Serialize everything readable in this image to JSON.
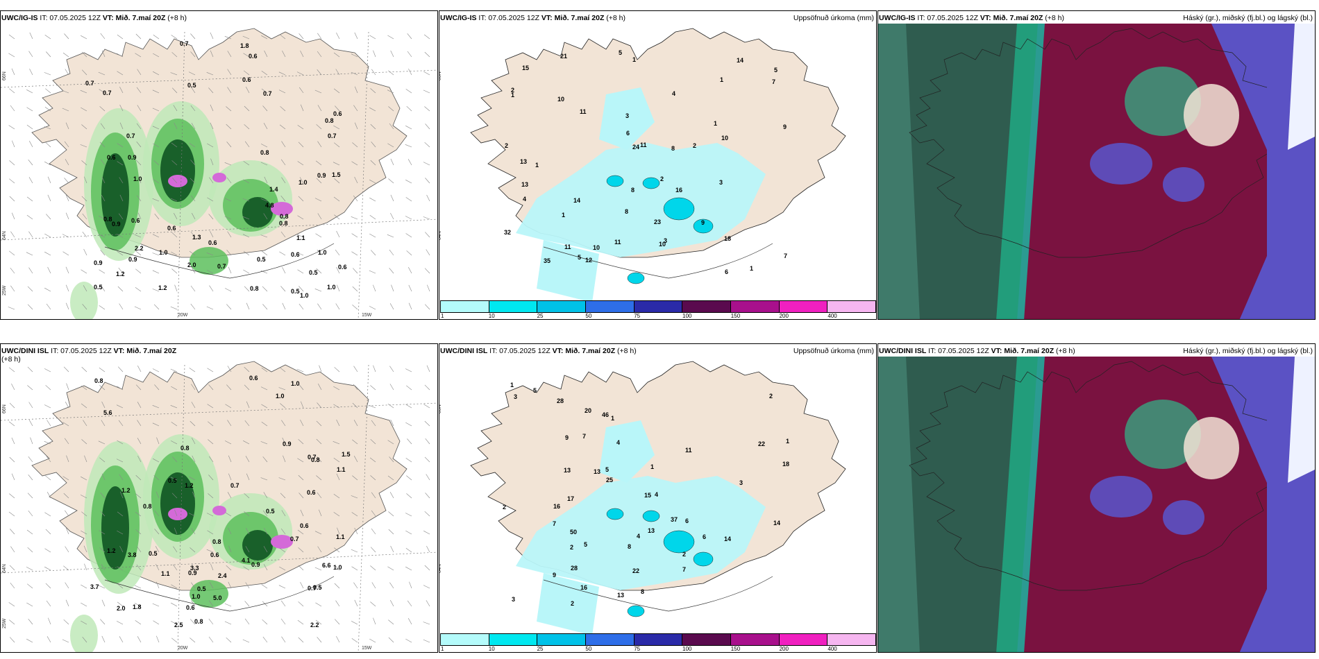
{
  "panels": [
    {
      "model": "UWC/IG-IS",
      "it_label": "IT: 07.05.2025 12Z",
      "vt_label": "VT: Mið. 7.maí 20Z",
      "lead": "(+8 h)",
      "right_title": "",
      "kind": "wind",
      "lat_labels": [
        "66N",
        "64N",
        "25W"
      ],
      "lon_labels": [
        "20W",
        "15W"
      ],
      "values": [
        "0.7",
        "0.6",
        "0.8",
        "1.0",
        "0.7",
        "0.9",
        "1.1",
        "0.6",
        "0.5",
        "0.7",
        "1.0",
        "0.8",
        "1.2",
        "2.2",
        "1.3",
        "0.7",
        "0.6",
        "0.8",
        "0.9",
        "1.0",
        "2.0",
        "1.8",
        "1.5",
        "1.4",
        "1.2",
        "0.9",
        "0.7",
        "0.6",
        "0.6",
        "0.8",
        "1.0",
        "0.6",
        "0.8",
        "0.5",
        "0.6",
        "1.0",
        "0.7",
        "0.9",
        "0.5",
        "0.6",
        "0.6",
        "0.5",
        "0.9",
        "4.8",
        "1.0",
        "0.7",
        "0.8",
        "0.5"
      ]
    },
    {
      "model": "UWC/IG-IS",
      "it_label": "IT: 07.05.2025 12Z",
      "vt_label": "VT: Mið. 7.maí 20Z",
      "lead": "(+8 h)",
      "right_title": "Uppsöfnuð úrkoma (mm)",
      "kind": "precip",
      "lat_labels": [
        "65N",
        "64N"
      ],
      "lon_labels": [],
      "values": [
        "2",
        "1",
        "1",
        "5",
        "2",
        "1",
        "1",
        "4",
        "3",
        "14",
        "11",
        "3",
        "5",
        "1",
        "10",
        "1",
        "3",
        "13",
        "2",
        "8",
        "9",
        "18",
        "7",
        "6",
        "11",
        "24",
        "16",
        "21",
        "12",
        "10",
        "13",
        "6",
        "8",
        "35",
        "5",
        "4",
        "10",
        "15",
        "10",
        "11",
        "23",
        "2",
        "7",
        "9",
        "8",
        "14",
        "1",
        "32",
        "11"
      ]
    },
    {
      "model": "UWC/IG-IS",
      "it_label": "IT: 07.05.2025 12Z",
      "vt_label": "VT: Mið. 7.maí 20Z",
      "lead": "(+8 h)",
      "right_title": "Háský (gr.), miðský (fj.bl.) og lágský (bl.)",
      "kind": "cloud"
    },
    {
      "model": "UWC/DINI ISL",
      "it_label": "IT: 07.05.2025 12Z",
      "vt_label": "VT: Mið. 7.maí 20Z",
      "lead": "(+8 h)",
      "right_title": "",
      "kind": "wind",
      "lat_labels": [
        "66N",
        "64N",
        "25W"
      ],
      "lon_labels": [
        "20W",
        "15W"
      ],
      "values": [
        "0.6",
        "1.2",
        "0.8",
        "1.0",
        "0.7",
        "0.5",
        "0.6",
        "0.8",
        "1.1",
        "0.7",
        "0.9",
        "1.2",
        "1.8",
        "2.2",
        "0.5",
        "3.7",
        "2.4",
        "0.6",
        "0.9",
        "0.8",
        "1.5",
        "2.5",
        "1.0",
        "2.0",
        "5.0",
        "5.6",
        "4.1",
        "3.3",
        "0.5",
        "1.0",
        "0.8",
        "0.6",
        "0.7",
        "0.5",
        "0.7",
        "1.1",
        "1.2",
        "0.8",
        "0.9",
        "1.0",
        "0.6",
        "0.8",
        "3.8",
        "1.1",
        "6.6",
        "0.5"
      ]
    },
    {
      "model": "UWC/DINI ISL",
      "it_label": "IT: 07.05.2025 12Z",
      "vt_label": "VT: Mið. 7.maí 20Z",
      "lead": "(+8 h)",
      "right_title": "Uppsöfnuð úrkoma (mm)",
      "kind": "precip",
      "lat_labels": [
        "65N",
        "64N"
      ],
      "lon_labels": [],
      "values": [
        "3",
        "1",
        "2",
        "2",
        "1",
        "2",
        "1",
        "5",
        "3",
        "6",
        "2",
        "4",
        "2",
        "7",
        "4",
        "13",
        "8",
        "9",
        "7",
        "5",
        "18",
        "22",
        "16",
        "17",
        "16",
        "13",
        "50",
        "14",
        "13",
        "46",
        "37",
        "20",
        "22",
        "14",
        "15",
        "13",
        "28",
        "25",
        "7",
        "11",
        "9",
        "8",
        "6",
        "4",
        "5",
        "1",
        "28",
        "3"
      ]
    },
    {
      "model": "UWC/DINI ISL",
      "it_label": "IT: 07.05.2025 12Z",
      "vt_label": "VT: Mið. 7.maí 20Z",
      "lead": "(+8 h)",
      "right_title": "Háský (gr.), miðský (fj.bl.) og lágský (bl.)",
      "kind": "cloud"
    }
  ],
  "colorbar": {
    "colors": [
      "#b4fbfb",
      "#00e8f0",
      "#00c2e8",
      "#2e6ee8",
      "#2a2aa8",
      "#5a0a4e",
      "#a8108c",
      "#f020c0",
      "#f6b6f0"
    ],
    "labels": [
      "1",
      "10",
      "25",
      "50",
      "75",
      "100",
      "150",
      "200",
      "400"
    ]
  },
  "colors": {
    "land": "#f2e4d6",
    "precip_light": "#b9f6f9",
    "green_light": "#bfe9b9",
    "green_mid": "#5dbf5d",
    "green_dark": "#0a4d1e",
    "magenta": "#d46ad8",
    "cloud_high": "#2f5c4f",
    "cloud_mid": "#7a1240",
    "cloud_low": "#5b52c4"
  }
}
